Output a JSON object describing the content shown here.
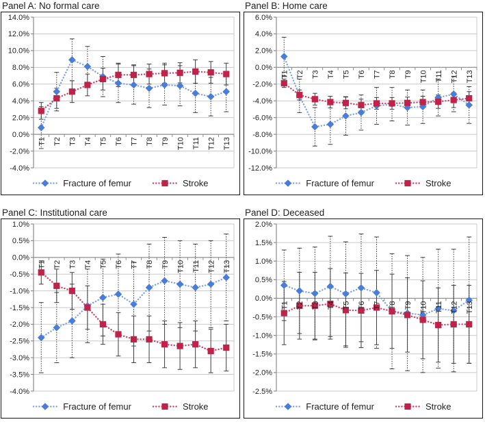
{
  "page": {
    "background": "#ffffff"
  },
  "colors": {
    "femur_marker": "#4a7cd9",
    "femur_line": "#7fa4e8",
    "stroke_marker": "#c0234a",
    "stroke_line": "#cc4466",
    "grid": "#c9c9c9",
    "axis": "#8c8c8c",
    "error_bar": "#3c3c3c",
    "text": "#1f1f1f",
    "box_border": "#161616"
  },
  "legend": {
    "items": [
      {
        "key": "femur",
        "label": "Fracture of femur"
      },
      {
        "key": "stroke",
        "label": "Stroke"
      }
    ]
  },
  "chart_data": [
    {
      "panel": "A",
      "title": "Panel A: No formal care",
      "type": "line",
      "categories": [
        "T1",
        "T2",
        "T3",
        "T4",
        "T5",
        "T6",
        "T7",
        "T8",
        "T9",
        "T10",
        "T11",
        "T12",
        "T13"
      ],
      "ylim": [
        -4,
        14
      ],
      "ytick_values": [
        14,
        12,
        10,
        8,
        6,
        4,
        2,
        0,
        -2,
        -4
      ],
      "ytick_labels": [
        "14.0%",
        "12.0%",
        "10.0%",
        "8.0%",
        "6.0%",
        "4.0%",
        "2.0%",
        "0.0%",
        "-2.0%",
        "-4.0%"
      ],
      "series": [
        {
          "key": "femur",
          "name": "Fracture of femur",
          "values": [
            0.8,
            5.1,
            8.9,
            8.1,
            6.9,
            6.1,
            5.9,
            5.5,
            5.9,
            5.8,
            4.9,
            4.5,
            5.1
          ],
          "err": [
            2.5,
            2.3,
            2.5,
            2.4,
            2.4,
            2.3,
            2.3,
            2.3,
            2.4,
            2.4,
            2.3,
            2.3,
            2.4
          ]
        },
        {
          "key": "stroke",
          "name": "Stroke",
          "values": [
            2.8,
            4.3,
            5.1,
            5.9,
            6.6,
            7.1,
            7.1,
            7.2,
            7.3,
            7.35,
            7.5,
            7.4,
            7.2
          ],
          "err": [
            1.0,
            1.2,
            1.3,
            1.3,
            1.3,
            1.4,
            1.2,
            1.2,
            1.2,
            1.2,
            1.4,
            1.3,
            1.3
          ]
        }
      ]
    },
    {
      "panel": "B",
      "title": "Panel B: Home care",
      "type": "line",
      "categories": [
        "T1",
        "T2",
        "T3",
        "T4",
        "T5",
        "T6",
        "T7",
        "T8",
        "T9",
        "T10",
        "T11",
        "T12",
        "T13"
      ],
      "ylim": [
        -12,
        6
      ],
      "ytick_values": [
        6,
        4,
        2,
        0,
        -2,
        -4,
        -6,
        -8,
        -10,
        -12
      ],
      "ytick_labels": [
        "6.0%",
        "4.0%",
        "2.0%",
        "0.0%",
        "-2.0%",
        "-4.0%",
        "-6.0%",
        "-8.0%",
        "-10.0%",
        "-12.0%"
      ],
      "series": [
        {
          "key": "femur",
          "name": "Fracture of femur",
          "values": [
            1.3,
            -3.4,
            -7.1,
            -6.8,
            -5.8,
            -5.4,
            -4.6,
            -4.4,
            -4.8,
            -4.7,
            -3.6,
            -3.2,
            -4.5
          ],
          "err": [
            2.3,
            2.0,
            2.3,
            2.4,
            2.3,
            2.1,
            2.2,
            2.0,
            2.1,
            2.0,
            2.2,
            2.1,
            2.2
          ]
        },
        {
          "key": "stroke",
          "name": "Stroke",
          "values": [
            -1.9,
            -3.3,
            -3.8,
            -4.15,
            -4.25,
            -4.5,
            -4.3,
            -4.3,
            -4.25,
            -4.15,
            -4.1,
            -3.9,
            -3.7
          ],
          "err": [
            0.5,
            0.6,
            0.7,
            0.7,
            0.7,
            0.7,
            0.7,
            0.7,
            0.7,
            0.7,
            0.8,
            0.9,
            0.8
          ]
        }
      ]
    },
    {
      "panel": "C",
      "title": "Panel C: Institutional care",
      "type": "line",
      "categories": [
        "T1",
        "T2",
        "T3",
        "T4",
        "T5",
        "T6",
        "T7",
        "T8",
        "T9",
        "T10",
        "T11",
        "T12",
        "T13"
      ],
      "ylim": [
        -4,
        1
      ],
      "ytick_values": [
        1,
        0.5,
        0,
        -0.5,
        -1,
        -1.5,
        -2,
        -2.5,
        -3,
        -3.5,
        -4
      ],
      "ytick_labels": [
        "1.0%",
        "0.5%",
        "0.0%",
        "-0.5%",
        "-1.0%",
        "-1.5%",
        "-2.0%",
        "-2.5%",
        "-3.0%",
        "-3.5%",
        "-4.0%"
      ],
      "series": [
        {
          "key": "femur",
          "name": "Fracture of femur",
          "values": [
            -2.4,
            -2.1,
            -1.9,
            -1.45,
            -1.2,
            -1.1,
            -1.4,
            -0.9,
            -0.7,
            -0.8,
            -0.9,
            -0.8,
            -0.6
          ],
          "err": [
            1.05,
            1.05,
            1.1,
            1.1,
            1.15,
            1.2,
            1.25,
            1.3,
            1.3,
            1.3,
            1.3,
            1.3,
            1.3
          ]
        },
        {
          "key": "stroke",
          "name": "Stroke",
          "values": [
            -0.45,
            -0.85,
            -1.0,
            -1.5,
            -2.0,
            -2.3,
            -2.45,
            -2.45,
            -2.6,
            -2.65,
            -2.6,
            -2.8,
            -2.7
          ],
          "err": [
            0.35,
            0.5,
            0.55,
            0.65,
            0.6,
            0.65,
            0.7,
            0.7,
            0.7,
            0.7,
            0.7,
            0.65,
            0.7
          ]
        }
      ]
    },
    {
      "panel": "D",
      "title": "Panel D: Deceased",
      "type": "line",
      "categories": [
        "T1",
        "T2",
        "T3",
        "T4",
        "T5",
        "T6",
        "T7",
        "T8",
        "T9",
        "T10",
        "T11",
        "T12",
        "T13"
      ],
      "ylim": [
        -2.5,
        2
      ],
      "ytick_values": [
        2,
        1.5,
        1,
        0.5,
        0,
        -0.5,
        -1,
        -1.5,
        -2,
        -2.5
      ],
      "ytick_labels": [
        "2.0%",
        "1.5%",
        "1.0%",
        "0.5%",
        "0.0%",
        "-0.5%",
        "-1.0%",
        "-1.5%",
        "-2.0%",
        "-2.5%"
      ],
      "series": [
        {
          "key": "femur",
          "name": "Fracture of femur",
          "values": [
            0.35,
            0.2,
            0.13,
            0.32,
            0.12,
            0.28,
            0.15,
            -0.35,
            -0.4,
            -0.45,
            -0.28,
            -0.33,
            -0.05
          ],
          "err": [
            0.95,
            1.15,
            1.25,
            1.35,
            1.4,
            1.45,
            1.5,
            1.55,
            1.55,
            1.55,
            1.6,
            1.65,
            1.7
          ]
        },
        {
          "key": "stroke",
          "name": "Stroke",
          "values": [
            -0.4,
            -0.2,
            -0.2,
            -0.15,
            -0.32,
            -0.33,
            -0.25,
            -0.35,
            -0.45,
            -0.58,
            -0.72,
            -0.7,
            -0.7
          ],
          "err": [
            0.85,
            0.9,
            0.9,
            0.95,
            1.0,
            1.0,
            1.0,
            1.0,
            1.0,
            1.05,
            1.0,
            1.05,
            1.05
          ]
        }
      ]
    }
  ]
}
